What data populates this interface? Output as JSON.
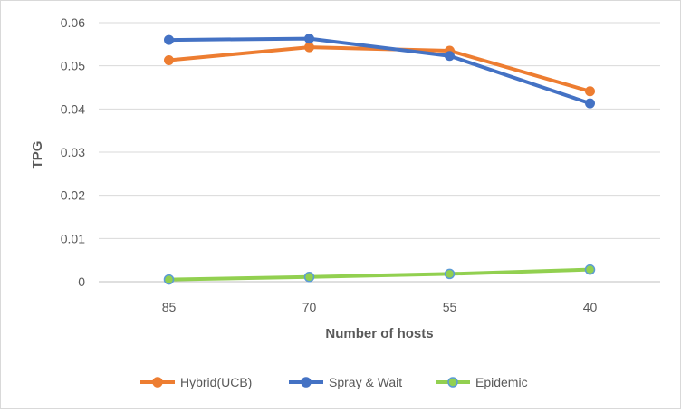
{
  "chart_data": {
    "type": "line",
    "title": "",
    "xlabel": "Number of hosts",
    "ylabel": "TPG",
    "categories": [
      "85",
      "70",
      "55",
      "40"
    ],
    "ylim": [
      0,
      0.06
    ],
    "yticks": [
      0,
      0.01,
      0.02,
      0.03,
      0.04,
      0.05,
      0.06
    ],
    "ytick_labels": [
      "0",
      "0.01",
      "0.02",
      "0.03",
      "0.04",
      "0.05",
      "0.06"
    ],
    "grid": true,
    "legend_position": "bottom",
    "series": [
      {
        "name": "Hybrid(UCB)",
        "color": "#ED7D31",
        "values": [
          0.0513,
          0.0543,
          0.0535,
          0.0441
        ]
      },
      {
        "name": "Spray & Wait",
        "color": "#4472C4",
        "values": [
          0.056,
          0.0563,
          0.0523,
          0.0413
        ]
      },
      {
        "name": "Epidemic",
        "color": "#92D050",
        "values": [
          0.0005,
          0.0011,
          0.0018,
          0.0028
        ]
      }
    ]
  }
}
